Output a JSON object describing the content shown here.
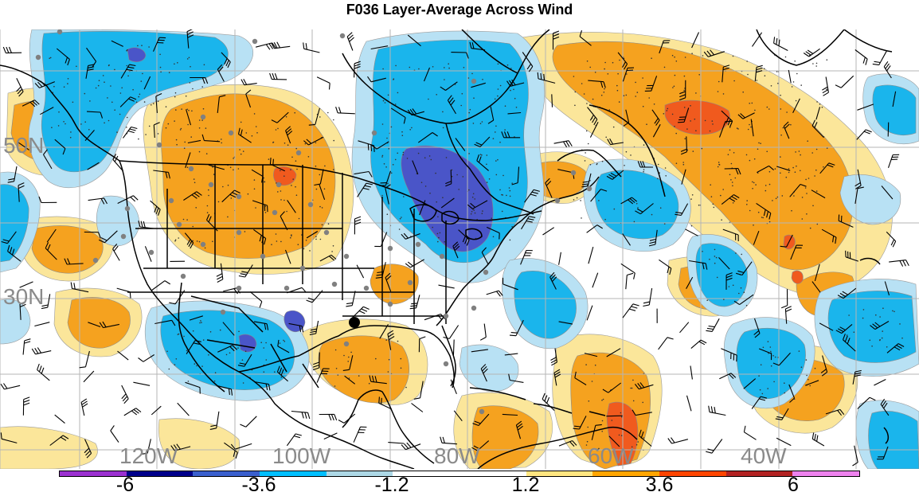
{
  "title": "F036 Layer-Average Across Wind",
  "map": {
    "latitude_labels": [
      "50N",
      "30N"
    ],
    "longitude_labels": [
      "120W",
      "100W",
      "80W",
      "60W",
      "40W"
    ],
    "marker": "black-dot-gulf-coast"
  },
  "colorbar": {
    "colors": [
      "#9b30d0",
      "#00008b",
      "#3a5fcd",
      "#00bfff",
      "#add8e6",
      "#ffffff",
      "#ffffff",
      "#ffe680",
      "#ffa500",
      "#ff4500",
      "#b22222",
      "#ee82ee"
    ],
    "labels": [
      "-6",
      "-3.6",
      "-1.2",
      "1.2",
      "3.6",
      "6"
    ]
  },
  "colors": {
    "neg_light": "#b8e1f4",
    "neg_mid": "#1ab5ec",
    "neg_strong": "#4a55c8",
    "pos_light": "#fbe69a",
    "pos_mid": "#f5a21f",
    "pos_strong": "#f05a1e"
  }
}
